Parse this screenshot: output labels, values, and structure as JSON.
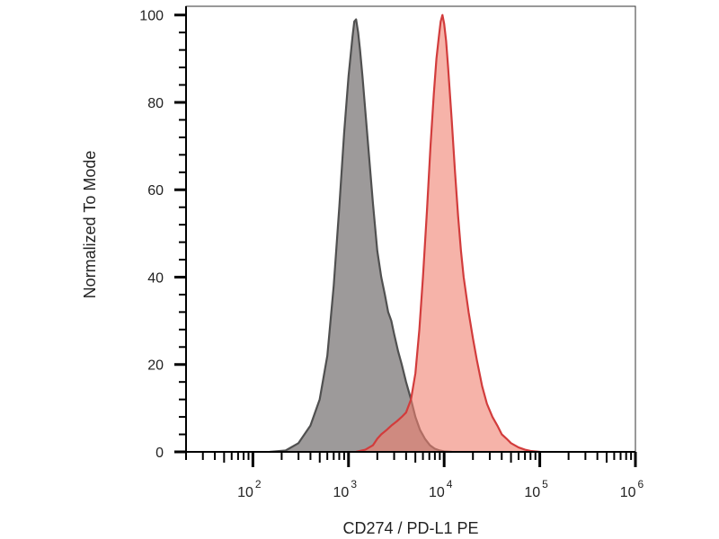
{
  "chart_data": {
    "type": "area",
    "xlabel": "CD274 / PD-L1 PE",
    "ylabel": "Normalized To Mode",
    "x_scale": "log",
    "x_range": [
      20,
      1000000
    ],
    "ylim": [
      0,
      102
    ],
    "y_ticks": [
      0,
      20,
      40,
      60,
      80,
      100
    ],
    "x_tick_labels": [
      {
        "base": "10",
        "exp": "2",
        "value": 100
      },
      {
        "base": "10",
        "exp": "3",
        "value": 1000
      },
      {
        "base": "10",
        "exp": "4",
        "value": 10000
      },
      {
        "base": "10",
        "exp": "5",
        "value": 100000
      },
      {
        "base": "10",
        "exp": "6",
        "value": 1000000
      }
    ],
    "grid": false,
    "legend": "none",
    "series": [
      {
        "color": "#505050",
        "fill": "#8c8888",
        "x": [
          150,
          220,
          300,
          400,
          500,
          600,
          700,
          800,
          900,
          1000,
          1100,
          1150,
          1200,
          1260,
          1320,
          1400,
          1500,
          1650,
          1800,
          2000,
          2200,
          2400,
          2600,
          2800,
          3000,
          3300,
          3600,
          4000,
          4500,
          5000,
          5600,
          6300,
          7100,
          8000,
          9000,
          10000,
          12000
        ],
        "y": [
          0,
          0.3,
          2,
          6,
          12,
          22,
          38,
          56,
          73,
          86,
          95,
          98.5,
          99,
          96,
          92,
          86,
          78,
          67,
          57,
          46,
          40,
          36,
          32,
          30,
          27,
          23,
          20,
          16,
          12,
          8,
          5,
          3,
          1.5,
          0.7,
          0.3,
          0.1,
          0
        ]
      },
      {
        "color": "#d23c3c",
        "fill": "#f08070",
        "x": [
          1200,
          1500,
          1800,
          2000,
          2200,
          2500,
          2800,
          3200,
          3600,
          4000,
          4500,
          5000,
          5500,
          6000,
          6600,
          7200,
          7800,
          8300,
          8800,
          9200,
          9600,
          10000,
          10500,
          11000,
          12000,
          13000,
          14000,
          15000,
          16000,
          18000,
          20000,
          22000,
          25000,
          28000,
          32000,
          36000,
          40000,
          45000,
          50000,
          60000,
          70000,
          80000,
          100000
        ],
        "y": [
          0,
          0.5,
          1.5,
          3,
          4,
          5,
          6,
          7,
          8,
          9,
          12,
          18,
          28,
          40,
          55,
          70,
          82,
          90,
          95,
          98.5,
          100,
          98,
          94,
          88,
          76,
          64,
          54,
          46,
          40,
          32,
          26,
          21,
          15,
          11,
          8,
          6,
          4,
          3,
          2,
          1,
          0.5,
          0.2,
          0
        ]
      }
    ]
  }
}
